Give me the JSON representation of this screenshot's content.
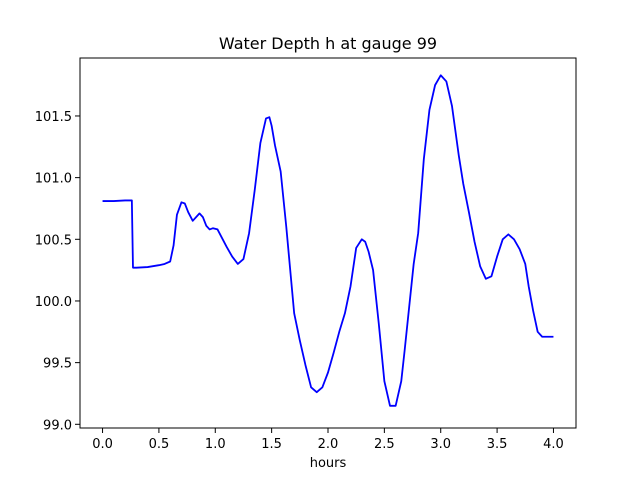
{
  "chart_data": {
    "type": "line",
    "title": "Water Depth h at gauge 99",
    "xlabel": "hours",
    "ylabel": "",
    "xlim": [
      -0.2,
      4.2
    ],
    "ylim": [
      98.97,
      101.97
    ],
    "xticks": [
      0.0,
      0.5,
      1.0,
      1.5,
      2.0,
      2.5,
      3.0,
      3.5,
      4.0
    ],
    "xtick_labels": [
      "0.0",
      "0.5",
      "1.0",
      "1.5",
      "2.0",
      "2.5",
      "3.0",
      "3.5",
      "4.0"
    ],
    "yticks": [
      99.0,
      99.5,
      100.0,
      100.5,
      101.0,
      101.5
    ],
    "ytick_labels": [
      "99.0",
      "99.5",
      "100.0",
      "100.5",
      "101.0",
      "101.5"
    ],
    "grid": false,
    "series": [
      {
        "color": "#0000ff",
        "x": [
          0.0,
          0.1,
          0.2,
          0.26,
          0.27,
          0.3,
          0.4,
          0.5,
          0.55,
          0.6,
          0.63,
          0.66,
          0.7,
          0.73,
          0.76,
          0.8,
          0.83,
          0.86,
          0.89,
          0.92,
          0.95,
          0.98,
          1.02,
          1.06,
          1.1,
          1.15,
          1.2,
          1.25,
          1.3,
          1.35,
          1.4,
          1.45,
          1.48,
          1.5,
          1.53,
          1.58,
          1.63,
          1.7,
          1.75,
          1.8,
          1.85,
          1.9,
          1.95,
          2.0,
          2.05,
          2.1,
          2.15,
          2.2,
          2.25,
          2.3,
          2.33,
          2.36,
          2.4,
          2.45,
          2.5,
          2.55,
          2.6,
          2.65,
          2.68,
          2.72,
          2.76,
          2.8,
          2.85,
          2.9,
          2.95,
          3.0,
          3.05,
          3.1,
          3.13,
          3.16,
          3.2,
          3.25,
          3.3,
          3.35,
          3.4,
          3.45,
          3.5,
          3.55,
          3.6,
          3.65,
          3.7,
          3.75,
          3.78,
          3.82,
          3.86,
          3.9,
          3.95,
          4.0
        ],
        "y": [
          100.81,
          100.81,
          100.815,
          100.815,
          100.27,
          100.27,
          100.275,
          100.29,
          100.3,
          100.32,
          100.45,
          100.7,
          100.8,
          100.79,
          100.72,
          100.65,
          100.68,
          100.71,
          100.68,
          100.61,
          100.58,
          100.59,
          100.58,
          100.51,
          100.44,
          100.36,
          100.3,
          100.34,
          100.55,
          100.9,
          101.28,
          101.48,
          101.49,
          101.42,
          101.26,
          101.05,
          100.6,
          99.9,
          99.68,
          99.48,
          99.3,
          99.26,
          99.3,
          99.42,
          99.58,
          99.75,
          99.9,
          100.12,
          100.43,
          100.5,
          100.48,
          100.4,
          100.25,
          99.82,
          99.35,
          99.15,
          99.15,
          99.35,
          99.6,
          99.95,
          100.3,
          100.55,
          101.15,
          101.55,
          101.75,
          101.83,
          101.78,
          101.58,
          101.38,
          101.18,
          100.95,
          100.72,
          100.48,
          100.28,
          100.18,
          100.2,
          100.36,
          100.5,
          100.54,
          100.5,
          100.42,
          100.3,
          100.12,
          99.92,
          99.75,
          99.71,
          99.71,
          99.71
        ]
      }
    ]
  }
}
